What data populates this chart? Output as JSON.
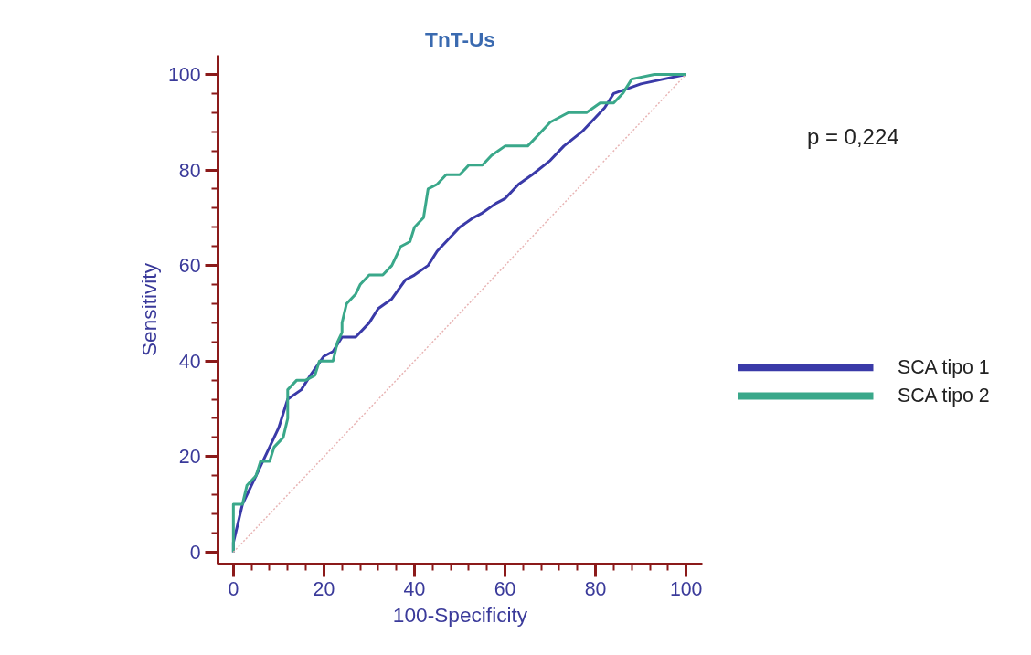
{
  "chart_data": {
    "type": "line",
    "title": "TnT-Us",
    "xlabel": "100-Specificity",
    "ylabel": "Sensitivity",
    "xlim": [
      -3.4,
      103.6
    ],
    "ylim": [
      -2.5,
      104
    ],
    "xticks": [
      0,
      20,
      40,
      60,
      80,
      100
    ],
    "yticks": [
      0,
      20,
      40,
      60,
      80,
      100
    ],
    "grid": false,
    "legend": "right",
    "annotations": [
      "p = 0,224"
    ],
    "series": [
      {
        "name": "SCA tipo 1",
        "color": "#3a3aa8",
        "x": [
          0,
          0,
          2,
          5,
          8,
          10,
          12,
          15,
          17,
          20,
          22,
          24,
          27,
          30,
          32,
          35,
          38,
          40,
          43,
          45,
          48,
          50,
          53,
          55,
          58,
          60,
          63,
          66,
          70,
          73,
          77,
          79,
          82,
          84,
          87,
          90,
          95,
          100
        ],
        "values": [
          0,
          2,
          10,
          16,
          22,
          26,
          32,
          34,
          37,
          41,
          42,
          45,
          45,
          48,
          51,
          53,
          57,
          58,
          60,
          63,
          66,
          68,
          70,
          71,
          73,
          74,
          77,
          79,
          82,
          85,
          88,
          90,
          93,
          96,
          97,
          98,
          99,
          100
        ]
      },
      {
        "name": "SCA tipo 2",
        "color": "#3aa88a",
        "x": [
          0,
          0,
          2,
          3,
          5,
          6,
          8,
          9,
          11,
          12,
          12,
          14,
          16,
          18,
          19,
          22,
          23,
          24,
          24,
          25,
          27,
          28,
          30,
          33,
          35,
          37,
          39,
          40,
          42,
          43,
          45,
          47,
          50,
          52,
          55,
          57,
          60,
          65,
          67,
          70,
          74,
          78,
          81,
          84,
          86,
          88,
          93,
          100
        ],
        "values": [
          0,
          10,
          10,
          14,
          16,
          19,
          19,
          22,
          24,
          28,
          34,
          36,
          36,
          37,
          40,
          40,
          44,
          46,
          48,
          52,
          54,
          56,
          58,
          58,
          60,
          64,
          65,
          68,
          70,
          76,
          77,
          79,
          79,
          81,
          81,
          83,
          85,
          85,
          87,
          90,
          92,
          92,
          94,
          94,
          96,
          99,
          100,
          100
        ]
      },
      {
        "color": "#e8b4b4",
        "line_style": "dotted",
        "x": [
          0,
          100
        ],
        "values": [
          0,
          100
        ]
      }
    ]
  }
}
